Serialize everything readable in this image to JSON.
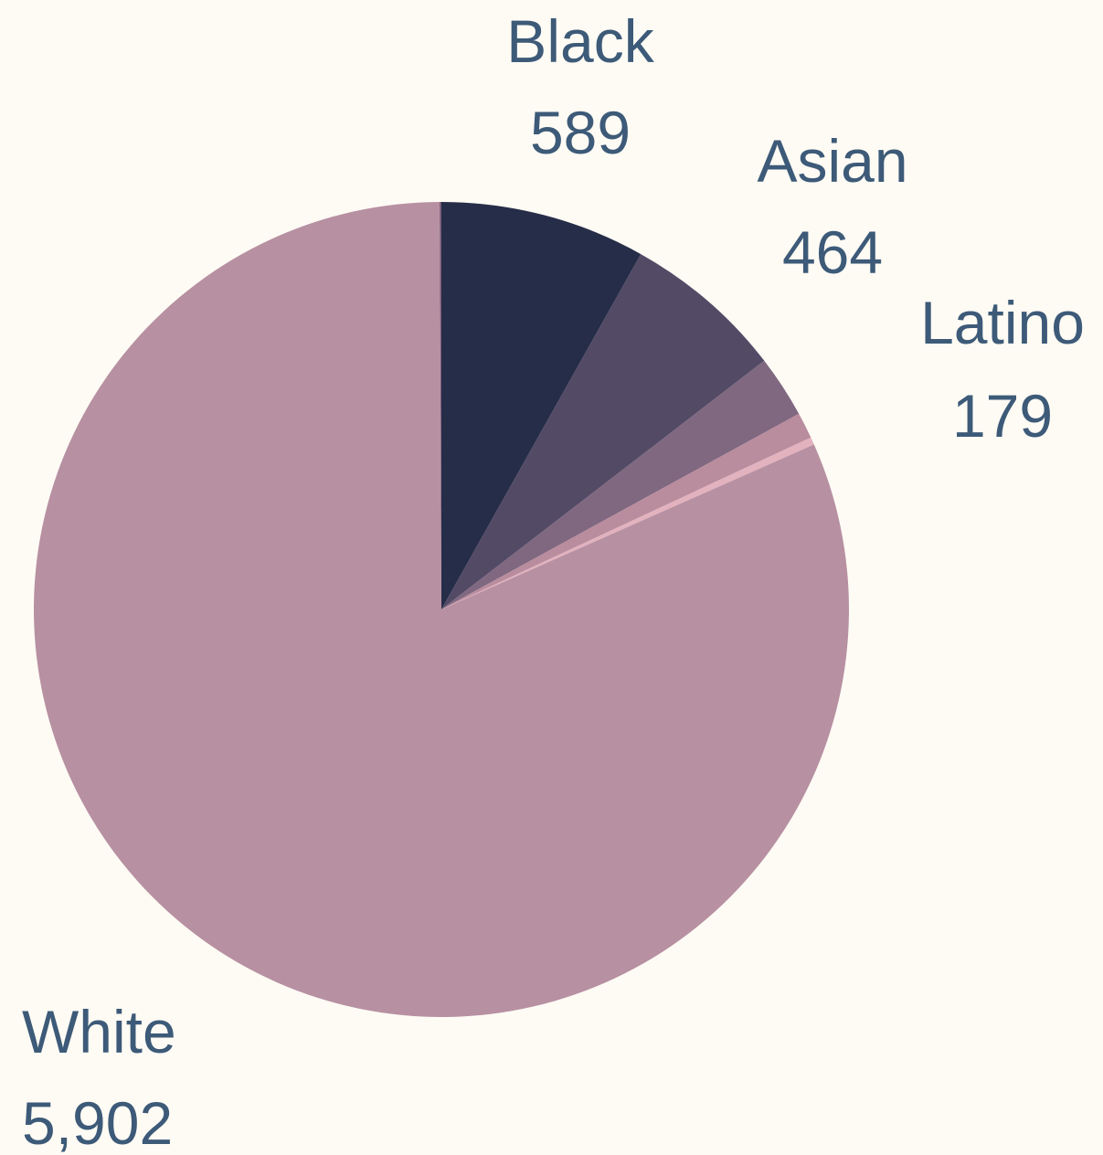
{
  "chart_data": {
    "type": "pie",
    "title": "",
    "start_angle_deg": 0,
    "direction": "clockwise",
    "slices": [
      {
        "label": "Black",
        "value_text": "589",
        "value": 589,
        "color": "#262d48",
        "labeled": true
      },
      {
        "label": "Asian",
        "value_text": "464",
        "value": 464,
        "color": "#534a66",
        "labeled": true
      },
      {
        "label": "Latino",
        "value_text": "179",
        "value": 179,
        "color": "#7f6880",
        "labeled": true
      },
      {
        "label": "",
        "value_text": "",
        "value": 75,
        "color": "#b98c9e",
        "labeled": false
      },
      {
        "label": "",
        "value_text": "",
        "value": 22,
        "color": "#e2b2be",
        "labeled": false
      },
      {
        "label": "White",
        "value_text": "5,902",
        "value": 5902,
        "color": "#b790a2",
        "labeled": true
      },
      {
        "label": "",
        "value_text": "",
        "value": 5,
        "color": "#7a5a78",
        "labeled": false
      }
    ]
  }
}
